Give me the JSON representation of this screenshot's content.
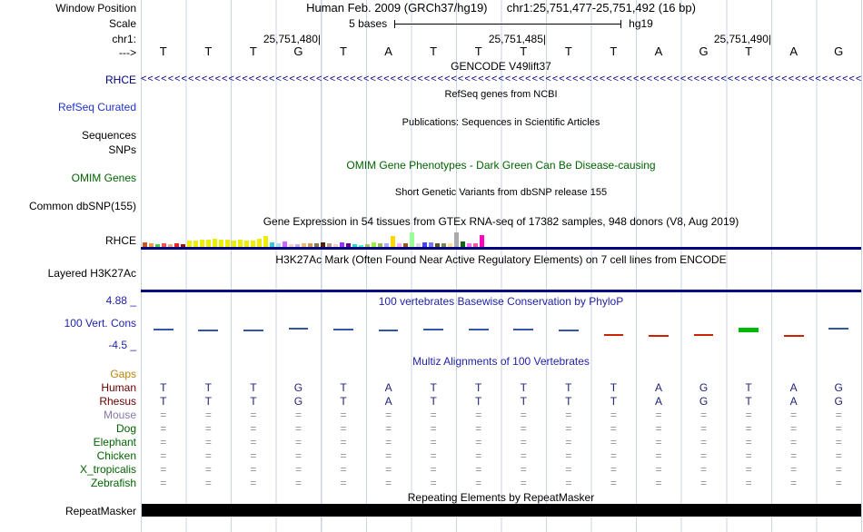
{
  "header": {
    "assembly": "Human Feb. 2009 (GRCh37/hg19)",
    "position": "chr1:25,751,477-25,751,492 (16 bp)"
  },
  "sidebar": {
    "window_position": "Window Position",
    "scale": "Scale",
    "chromosome": "chr1:",
    "strand": "--->",
    "gencode_gene": "RHCE",
    "refseq_curated": "RefSeq Curated",
    "sequences": "Sequences",
    "snps": "SNPs",
    "omim_genes": "OMIM Genes",
    "common_dbsnp": "Common dbSNP(155)",
    "gtex_gene": "RHCE",
    "layered_h3k27ac": "Layered H3K27Ac",
    "cons_max": "4.88 _",
    "cons_label": "100 Vert. Cons",
    "cons_min": "-4.5 _",
    "repeatmasker": "RepeatMasker"
  },
  "scale_bar": {
    "label": "5 bases",
    "assembly": "hg19"
  },
  "ruler": {
    "ticks": [
      "25,751,480|",
      "25,751,485|",
      "25,751,490|"
    ]
  },
  "sequence": [
    "T",
    "T",
    "T",
    "G",
    "T",
    "A",
    "T",
    "T",
    "T",
    "T",
    "T",
    "A",
    "G",
    "T",
    "A",
    "G"
  ],
  "titles": {
    "gencode": "GENCODE V49lift37",
    "refseq": "RefSeq genes from NCBI",
    "publications": "Publications: Sequences in Scientific Articles",
    "omim": "OMIM Gene Phenotypes - Dark Green Can Be Disease-causing",
    "dbsnp": "Short Genetic Variants from dbSNP release 155",
    "gtex": "Gene Expression in 54 tissues from GTEx RNA-seq of 17382 samples, 948 donors (V8, Aug 2019)",
    "h3k27ac": "H3K27Ac Mark (Often Found Near Active Regulatory Elements) on 7 cell lines from ENCODE",
    "conservation": "100 vertebrates Basewise Conservation by PhyloP",
    "multiz": "Multiz Alignments of 100 Vertebrates",
    "repeatmasker": "Repeating Elements by RepeatMasker"
  },
  "multiz": {
    "species": [
      {
        "name": "Gaps",
        "color": "#b8860b",
        "cell_color": "#8c949c",
        "cells": [
          "",
          "",
          "",
          "",
          "",
          "",
          "",
          "",
          "",
          "",
          "",
          "",
          "",
          "",
          "",
          ""
        ]
      },
      {
        "name": "Human",
        "color": "#660000",
        "cell_color": "#222277",
        "cells": [
          "T",
          "T",
          "T",
          "G",
          "T",
          "A",
          "T",
          "T",
          "T",
          "T",
          "T",
          "A",
          "G",
          "T",
          "A",
          "G"
        ]
      },
      {
        "name": "Rhesus",
        "color": "#660000",
        "cell_color": "#222277",
        "cells": [
          "T",
          "T",
          "T",
          "G",
          "T",
          "A",
          "T",
          "T",
          "T",
          "T",
          "T",
          "A",
          "G",
          "T",
          "A",
          "G"
        ]
      },
      {
        "name": "Mouse",
        "color": "#8877aa",
        "cell_color": "#8c949c",
        "cells": [
          "=",
          "=",
          "=",
          "=",
          "=",
          "=",
          "=",
          "=",
          "=",
          "=",
          "=",
          "=",
          "=",
          "=",
          "=",
          "="
        ]
      },
      {
        "name": "Dog",
        "color": "#006400",
        "cell_color": "#8c949c",
        "cells": [
          "=",
          "=",
          "=",
          "=",
          "=",
          "=",
          "=",
          "=",
          "=",
          "=",
          "=",
          "=",
          "=",
          "=",
          "=",
          "="
        ]
      },
      {
        "name": "Elephant",
        "color": "#006400",
        "cell_color": "#8c949c",
        "cells": [
          "=",
          "=",
          "=",
          "=",
          "=",
          "=",
          "=",
          "=",
          "=",
          "=",
          "=",
          "=",
          "=",
          "=",
          "=",
          "="
        ]
      },
      {
        "name": "Chicken",
        "color": "#006400",
        "cell_color": "#8c949c",
        "cells": [
          "=",
          "=",
          "=",
          "=",
          "=",
          "=",
          "=",
          "=",
          "=",
          "=",
          "=",
          "=",
          "=",
          "=",
          "=",
          "="
        ]
      },
      {
        "name": "X_tropicalis",
        "color": "#006400",
        "cell_color": "#8c949c",
        "cells": [
          "=",
          "=",
          "=",
          "=",
          "=",
          "=",
          "=",
          "=",
          "=",
          "=",
          "=",
          "=",
          "=",
          "=",
          "=",
          "="
        ]
      },
      {
        "name": "Zebrafish",
        "color": "#006400",
        "cell_color": "#8c949c",
        "cells": [
          "=",
          "=",
          "=",
          "=",
          "=",
          "=",
          "=",
          "=",
          "=",
          "=",
          "=",
          "=",
          "=",
          "=",
          "=",
          "="
        ]
      }
    ]
  },
  "colors": {
    "gridline": "#c9d3e6",
    "track_baseline": "#000080",
    "gencode_blue": "#000080",
    "refseq_blue": "#2233cc",
    "omim_green": "#006400",
    "title_blue": "#2222aa",
    "repeat_bar": "#000000"
  },
  "chart_data": [
    {
      "type": "bar",
      "name": "gtex_expression",
      "gene": "RHCE",
      "title": "Gene Expression in 54 tissues from GTEx RNA-seq of 17382 samples, 948 donors (V8, Aug 2019)",
      "note": "54 tissue bars, heights in px (relative expression), colors per GTEx tissue palette",
      "bars": [
        {
          "c": "#cc5522",
          "h": 5
        },
        {
          "c": "#ee9944",
          "h": 4
        },
        {
          "c": "#44cc44",
          "h": 3
        },
        {
          "c": "#ee5555",
          "h": 4
        },
        {
          "c": "#eeaa88",
          "h": 3
        },
        {
          "c": "#ee2222",
          "h": 4
        },
        {
          "c": "#991111",
          "h": 3
        },
        {
          "c": "#eeee00",
          "h": 7
        },
        {
          "c": "#eeee00",
          "h": 7
        },
        {
          "c": "#eeee00",
          "h": 8
        },
        {
          "c": "#eeee00",
          "h": 8
        },
        {
          "c": "#eeee00",
          "h": 9
        },
        {
          "c": "#eeee00",
          "h": 8
        },
        {
          "c": "#eeee00",
          "h": 8
        },
        {
          "c": "#eeee00",
          "h": 7
        },
        {
          "c": "#eeee00",
          "h": 8
        },
        {
          "c": "#eeee00",
          "h": 7
        },
        {
          "c": "#eeee00",
          "h": 7
        },
        {
          "c": "#eeee00",
          "h": 9
        },
        {
          "c": "#eeee00",
          "h": 12
        },
        {
          "c": "#33cccc",
          "h": 5
        },
        {
          "c": "#aaddee",
          "h": 4
        },
        {
          "c": "#cc66ff",
          "h": 6
        },
        {
          "c": "#ffcccc",
          "h": 3
        },
        {
          "c": "#ccaadd",
          "h": 3
        },
        {
          "c": "#eebb77",
          "h": 4
        },
        {
          "c": "#cc9955",
          "h": 4
        },
        {
          "c": "#8b7355",
          "h": 4
        },
        {
          "c": "#552200",
          "h": 5
        },
        {
          "c": "#bb9988",
          "h": 4
        },
        {
          "c": "#ffcccc",
          "h": 3
        },
        {
          "c": "#9933ff",
          "h": 5
        },
        {
          "c": "#660099",
          "h": 4
        },
        {
          "c": "#22ddcc",
          "h": 3
        },
        {
          "c": "#33ffcc",
          "h": 2
        },
        {
          "c": "#aabb66",
          "h": 3
        },
        {
          "c": "#99ee44",
          "h": 5
        },
        {
          "c": "#99bb55",
          "h": 4
        },
        {
          "c": "#aaaaff",
          "h": 4
        },
        {
          "c": "#ffd700",
          "h": 12
        },
        {
          "c": "#ffaaff",
          "h": 4
        },
        {
          "c": "#995522",
          "h": 4
        },
        {
          "c": "#99ff99",
          "h": 16
        },
        {
          "c": "#dddddd",
          "h": 4
        },
        {
          "c": "#4444ff",
          "h": 5
        },
        {
          "c": "#7777ff",
          "h": 5
        },
        {
          "c": "#555522",
          "h": 4
        },
        {
          "c": "#778855",
          "h": 4
        },
        {
          "c": "#ffdd99",
          "h": 4
        },
        {
          "c": "#aaaaaa",
          "h": 16
        },
        {
          "c": "#116611",
          "h": 6
        },
        {
          "c": "#ff66ff",
          "h": 4
        },
        {
          "c": "#ff5599",
          "h": 4
        },
        {
          "c": "#ff00bb",
          "h": 13
        }
      ]
    },
    {
      "type": "line",
      "name": "phylop_conservation",
      "title": "100 vertebrates Basewise Conservation by PhyloP",
      "ylim": [
        -4.5,
        4.88
      ],
      "note": "one mark per base; v = estimated phyloP score, dy = px offset from baseline, h = mark height px",
      "marks": [
        {
          "v": 0.5,
          "dy": 2,
          "h": 2,
          "c": "#3355aa"
        },
        {
          "v": 0.3,
          "dy": 1,
          "h": 2,
          "c": "#3355aa"
        },
        {
          "v": 0.3,
          "dy": 1,
          "h": 2,
          "c": "#3355aa"
        },
        {
          "v": 0.8,
          "dy": 3,
          "h": 2,
          "c": "#3355aa"
        },
        {
          "v": 0.5,
          "dy": 2,
          "h": 2,
          "c": "#3355aa"
        },
        {
          "v": 0.3,
          "dy": 1,
          "h": 2,
          "c": "#3355aa"
        },
        {
          "v": 0.5,
          "dy": 2,
          "h": 2,
          "c": "#3355aa"
        },
        {
          "v": 0.5,
          "dy": 2,
          "h": 2,
          "c": "#3355aa"
        },
        {
          "v": 0.5,
          "dy": 2,
          "h": 2,
          "c": "#3355aa"
        },
        {
          "v": 0.3,
          "dy": 1,
          "h": 2,
          "c": "#3355aa"
        },
        {
          "v": -0.5,
          "dy": -2,
          "h": 2,
          "c": "#cc2200"
        },
        {
          "v": -0.8,
          "dy": -3,
          "h": 2,
          "c": "#cc2200"
        },
        {
          "v": -0.5,
          "dy": -2,
          "h": 2,
          "c": "#cc2200"
        },
        {
          "v": 1.2,
          "dy": 0,
          "h": 5,
          "c": "#00bb00"
        },
        {
          "v": -0.8,
          "dy": -3,
          "h": 2,
          "c": "#cc2200"
        },
        {
          "v": 0.8,
          "dy": 3,
          "h": 2,
          "c": "#3355aa"
        }
      ]
    }
  ]
}
